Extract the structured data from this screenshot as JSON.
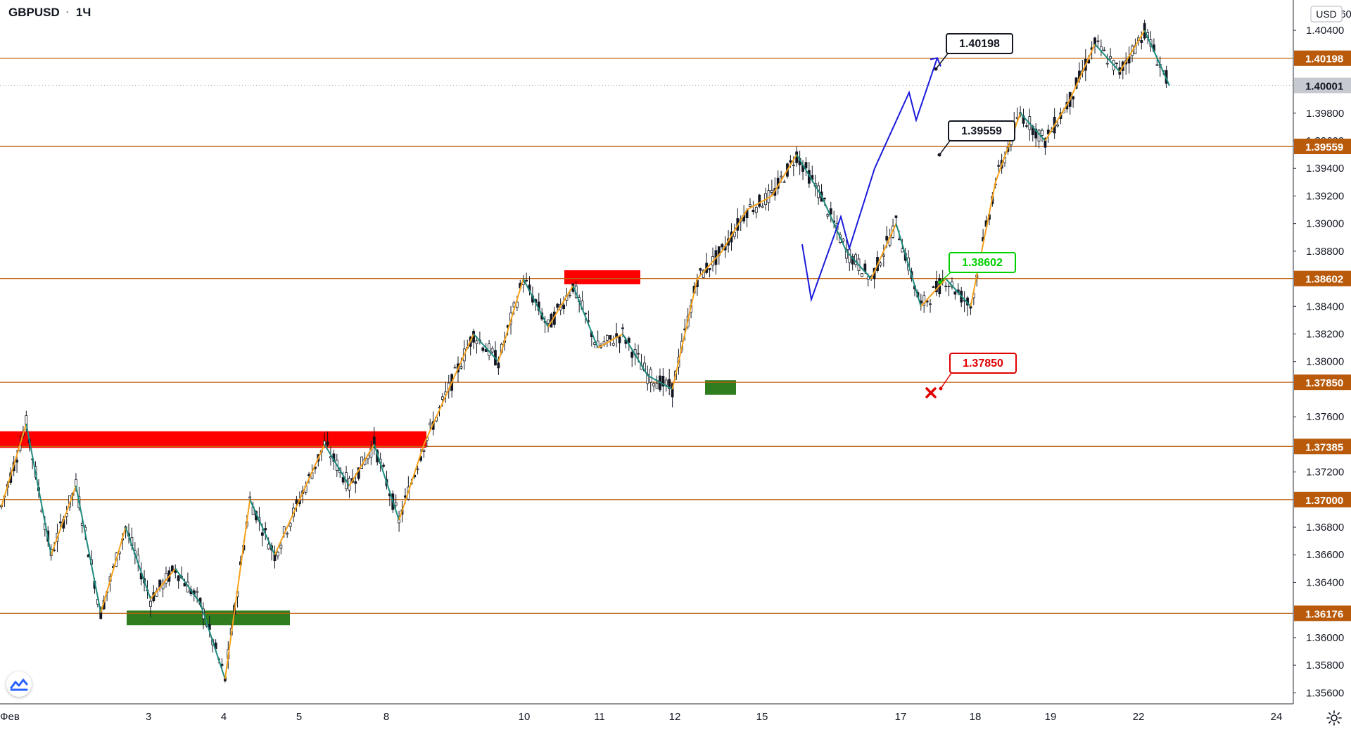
{
  "header": {
    "symbol": "GBPUSD",
    "separator": "·",
    "interval": "1Ч"
  },
  "price_axis": {
    "currency": "USD",
    "top_partial_label": "1.40600",
    "ticks": [
      "1.40400",
      "1.39800",
      "1.39600",
      "1.39400",
      "1.39200",
      "1.39000",
      "1.38800",
      "1.38400",
      "1.38200",
      "1.38000",
      "1.37600",
      "1.37200",
      "1.36800",
      "1.36600",
      "1.36400",
      "1.36000",
      "1.35800",
      "1.35600"
    ],
    "level_labels": [
      "1.40198",
      "1.39559",
      "1.38602",
      "1.37850",
      "1.37385",
      "1.37000",
      "1.36176"
    ],
    "current_price": "1.40001"
  },
  "time_axis": {
    "labels": [
      "Фев",
      "3",
      "4",
      "5",
      "8",
      "10",
      "11",
      "12",
      "15",
      "17",
      "18",
      "19",
      "22",
      "24"
    ]
  },
  "chart_data": {
    "type": "line",
    "symbol": "GBPUSD",
    "interval": "1Ч",
    "ylim": [
      1.3552,
      1.4062
    ],
    "horizontal_levels": [
      1.40198,
      1.39559,
      1.38602,
      1.3785,
      1.37385,
      1.37,
      1.36176
    ],
    "current_price": 1.40001,
    "price_path_x": [
      "Фев",
      "",
      "",
      "",
      "3",
      "",
      "4",
      "",
      "",
      "",
      "",
      "5",
      "",
      "",
      "8",
      "",
      "",
      "",
      "",
      "10",
      "",
      "",
      "11",
      "",
      "12",
      "",
      "",
      "",
      "15",
      "",
      "",
      "",
      "",
      "17",
      "",
      "",
      "",
      "",
      "18",
      "",
      "",
      "",
      "19",
      "",
      "",
      "",
      "",
      "22",
      ""
    ],
    "price_path": [
      1.3695,
      1.3755,
      1.366,
      1.371,
      1.3618,
      1.368,
      1.3628,
      1.365,
      1.3625,
      1.357,
      1.37,
      1.366,
      1.37,
      1.374,
      1.371,
      1.374,
      1.3685,
      1.374,
      1.378,
      1.382,
      1.38,
      1.386,
      1.3825,
      1.3855,
      1.381,
      1.382,
      1.379,
      1.378,
      1.386,
      1.388,
      1.391,
      1.392,
      1.395,
      1.392,
      1.388,
      1.386,
      1.39,
      1.384,
      1.386,
      1.384,
      1.393,
      1.398,
      1.396,
      1.399,
      1.403,
      1.401,
      1.404,
      1.4
    ],
    "zones": [
      {
        "type": "supply",
        "price_top": 1.37495,
        "price_bottom": 1.37375
      },
      {
        "type": "supply",
        "price_top": 1.38662,
        "price_bottom": 1.3856
      },
      {
        "type": "demand",
        "price_top": 1.37865,
        "price_bottom": 1.3776
      },
      {
        "type": "demand",
        "price_top": 1.36196,
        "price_bottom": 1.3609
      }
    ],
    "annotations": [
      {
        "text": "1.40198",
        "color": "#131722"
      },
      {
        "text": "1.39559",
        "color": "#131722"
      },
      {
        "text": "1.38602",
        "color": "#00d000"
      },
      {
        "text": "1.37850",
        "color": "#e00000"
      }
    ],
    "projection_path": [
      1.3885,
      1.3845,
      1.3905,
      1.3882,
      1.394,
      1.3995,
      1.3975,
      1.402
    ],
    "colors": {
      "level_line": "#c0600c",
      "zigzag_up": "#f7a21b",
      "zigzag_down": "#1e8c7e",
      "projection": "#1a1adb",
      "supply_zone": "#ff0000",
      "demand_zone": "#2e7d1f",
      "level_label_bg": "#b85a0a",
      "current_label_bg": "#c6c9d0"
    }
  }
}
